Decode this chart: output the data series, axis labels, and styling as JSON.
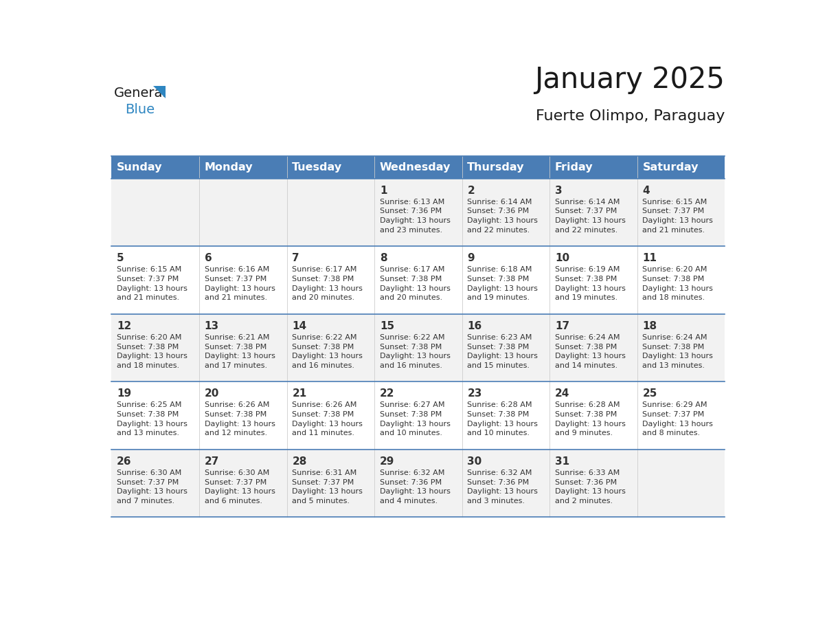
{
  "title": "January 2025",
  "subtitle": "Fuerte Olimpo, Paraguay",
  "days_of_week": [
    "Sunday",
    "Monday",
    "Tuesday",
    "Wednesday",
    "Thursday",
    "Friday",
    "Saturday"
  ],
  "header_bg": "#4A7DB5",
  "header_text_color": "#FFFFFF",
  "row_bg_odd": "#F2F2F2",
  "row_bg_even": "#FFFFFF",
  "border_color": "#4A7DB5",
  "day_number_color": "#333333",
  "cell_text_color": "#333333",
  "title_color": "#1a1a1a",
  "subtitle_color": "#1a1a1a",
  "logo_general_color": "#1a1a1a",
  "logo_blue_color": "#2E86C1",
  "weeks": [
    {
      "days": [
        {
          "date": "",
          "info": ""
        },
        {
          "date": "",
          "info": ""
        },
        {
          "date": "",
          "info": ""
        },
        {
          "date": "1",
          "info": "Sunrise: 6:13 AM\nSunset: 7:36 PM\nDaylight: 13 hours\nand 23 minutes."
        },
        {
          "date": "2",
          "info": "Sunrise: 6:14 AM\nSunset: 7:36 PM\nDaylight: 13 hours\nand 22 minutes."
        },
        {
          "date": "3",
          "info": "Sunrise: 6:14 AM\nSunset: 7:37 PM\nDaylight: 13 hours\nand 22 minutes."
        },
        {
          "date": "4",
          "info": "Sunrise: 6:15 AM\nSunset: 7:37 PM\nDaylight: 13 hours\nand 21 minutes."
        }
      ]
    },
    {
      "days": [
        {
          "date": "5",
          "info": "Sunrise: 6:15 AM\nSunset: 7:37 PM\nDaylight: 13 hours\nand 21 minutes."
        },
        {
          "date": "6",
          "info": "Sunrise: 6:16 AM\nSunset: 7:37 PM\nDaylight: 13 hours\nand 21 minutes."
        },
        {
          "date": "7",
          "info": "Sunrise: 6:17 AM\nSunset: 7:38 PM\nDaylight: 13 hours\nand 20 minutes."
        },
        {
          "date": "8",
          "info": "Sunrise: 6:17 AM\nSunset: 7:38 PM\nDaylight: 13 hours\nand 20 minutes."
        },
        {
          "date": "9",
          "info": "Sunrise: 6:18 AM\nSunset: 7:38 PM\nDaylight: 13 hours\nand 19 minutes."
        },
        {
          "date": "10",
          "info": "Sunrise: 6:19 AM\nSunset: 7:38 PM\nDaylight: 13 hours\nand 19 minutes."
        },
        {
          "date": "11",
          "info": "Sunrise: 6:20 AM\nSunset: 7:38 PM\nDaylight: 13 hours\nand 18 minutes."
        }
      ]
    },
    {
      "days": [
        {
          "date": "12",
          "info": "Sunrise: 6:20 AM\nSunset: 7:38 PM\nDaylight: 13 hours\nand 18 minutes."
        },
        {
          "date": "13",
          "info": "Sunrise: 6:21 AM\nSunset: 7:38 PM\nDaylight: 13 hours\nand 17 minutes."
        },
        {
          "date": "14",
          "info": "Sunrise: 6:22 AM\nSunset: 7:38 PM\nDaylight: 13 hours\nand 16 minutes."
        },
        {
          "date": "15",
          "info": "Sunrise: 6:22 AM\nSunset: 7:38 PM\nDaylight: 13 hours\nand 16 minutes."
        },
        {
          "date": "16",
          "info": "Sunrise: 6:23 AM\nSunset: 7:38 PM\nDaylight: 13 hours\nand 15 minutes."
        },
        {
          "date": "17",
          "info": "Sunrise: 6:24 AM\nSunset: 7:38 PM\nDaylight: 13 hours\nand 14 minutes."
        },
        {
          "date": "18",
          "info": "Sunrise: 6:24 AM\nSunset: 7:38 PM\nDaylight: 13 hours\nand 13 minutes."
        }
      ]
    },
    {
      "days": [
        {
          "date": "19",
          "info": "Sunrise: 6:25 AM\nSunset: 7:38 PM\nDaylight: 13 hours\nand 13 minutes."
        },
        {
          "date": "20",
          "info": "Sunrise: 6:26 AM\nSunset: 7:38 PM\nDaylight: 13 hours\nand 12 minutes."
        },
        {
          "date": "21",
          "info": "Sunrise: 6:26 AM\nSunset: 7:38 PM\nDaylight: 13 hours\nand 11 minutes."
        },
        {
          "date": "22",
          "info": "Sunrise: 6:27 AM\nSunset: 7:38 PM\nDaylight: 13 hours\nand 10 minutes."
        },
        {
          "date": "23",
          "info": "Sunrise: 6:28 AM\nSunset: 7:38 PM\nDaylight: 13 hours\nand 10 minutes."
        },
        {
          "date": "24",
          "info": "Sunrise: 6:28 AM\nSunset: 7:38 PM\nDaylight: 13 hours\nand 9 minutes."
        },
        {
          "date": "25",
          "info": "Sunrise: 6:29 AM\nSunset: 7:37 PM\nDaylight: 13 hours\nand 8 minutes."
        }
      ]
    },
    {
      "days": [
        {
          "date": "26",
          "info": "Sunrise: 6:30 AM\nSunset: 7:37 PM\nDaylight: 13 hours\nand 7 minutes."
        },
        {
          "date": "27",
          "info": "Sunrise: 6:30 AM\nSunset: 7:37 PM\nDaylight: 13 hours\nand 6 minutes."
        },
        {
          "date": "28",
          "info": "Sunrise: 6:31 AM\nSunset: 7:37 PM\nDaylight: 13 hours\nand 5 minutes."
        },
        {
          "date": "29",
          "info": "Sunrise: 6:32 AM\nSunset: 7:36 PM\nDaylight: 13 hours\nand 4 minutes."
        },
        {
          "date": "30",
          "info": "Sunrise: 6:32 AM\nSunset: 7:36 PM\nDaylight: 13 hours\nand 3 minutes."
        },
        {
          "date": "31",
          "info": "Sunrise: 6:33 AM\nSunset: 7:36 PM\nDaylight: 13 hours\nand 2 minutes."
        },
        {
          "date": "",
          "info": ""
        }
      ]
    }
  ]
}
